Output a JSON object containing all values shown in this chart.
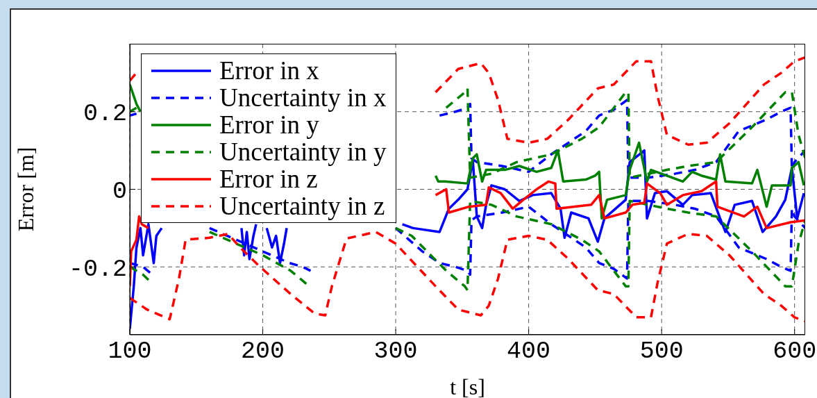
{
  "chart_data": {
    "type": "line",
    "xlabel": "t [s]",
    "ylabel": "Error [m]",
    "xlim": [
      100,
      608
    ],
    "ylim": [
      -0.375,
      0.375
    ],
    "xticks": [
      100,
      200,
      300,
      400,
      500,
      600
    ],
    "yticks": [
      -0.2,
      0,
      0.2
    ],
    "grid": true,
    "legend": "top left",
    "series": [
      {
        "name": "Error in x",
        "color": "#0000ff",
        "line_style": "solid",
        "x": [
          100,
          103,
          105,
          108,
          110,
          114,
          118,
          120,
          124,
          150,
          184,
          186,
          188,
          190,
          193,
          195,
          199,
          203,
          207,
          210,
          213,
          216,
          218,
          260,
          305,
          313,
          333,
          340,
          347,
          354,
          358,
          361,
          365,
          368,
          372,
          382,
          393,
          403,
          417,
          424,
          427,
          432,
          445,
          452,
          457,
          473,
          476,
          487,
          489,
          495,
          504,
          516,
          523,
          537,
          544,
          548,
          555,
          568,
          576,
          586,
          593,
          598,
          602,
          607
        ],
        "values": [
          -0.36,
          -0.25,
          -0.15,
          -0.1,
          -0.17,
          -0.09,
          -0.19,
          -0.12,
          -0.1,
          null,
          -0.1,
          -0.17,
          -0.11,
          -0.18,
          -0.12,
          -0.09,
          null,
          -0.1,
          -0.15,
          -0.12,
          -0.19,
          -0.14,
          -0.1,
          null,
          -0.09,
          -0.1,
          -0.11,
          -0.05,
          -0.027,
          0,
          0.075,
          -0.07,
          -0.1,
          -0.04,
          0.01,
          0,
          -0.03,
          -0.015,
          -0.01,
          -0.05,
          -0.125,
          -0.06,
          -0.075,
          -0.135,
          -0.075,
          -0.027,
          0.07,
          0.1,
          -0.075,
          -0.01,
          -0.005,
          -0.04,
          -0.015,
          -0.01,
          -0.075,
          -0.11,
          -0.04,
          -0.03,
          -0.11,
          -0.07,
          -0.027,
          0.055,
          -0.075,
          -0.01
        ]
      },
      {
        "name": "Uncertainty in x",
        "color": "#0000ff",
        "line_style": "dashed",
        "x": [
          100,
          105,
          117,
          118,
          140,
          160,
          180,
          200,
          220,
          230,
          236,
          237,
          260,
          280,
          300,
          320,
          333,
          345,
          354,
          356,
          357,
          361,
          380,
          400,
          417,
          443,
          453,
          464,
          474,
          475,
          480,
          490,
          510,
          525,
          541,
          558,
          579,
          590,
          597,
          598,
          600,
          608
        ],
        "values": [
          0.19,
          0.195,
          null,
          null,
          null,
          null,
          null,
          null,
          null,
          null,
          null,
          null,
          null,
          null,
          null,
          null,
          0.19,
          0.2,
          0.21,
          0.22,
          0.08,
          0.07,
          0.06,
          0.045,
          0.09,
          0.15,
          0.19,
          0.205,
          0.23,
          0.03,
          0.03,
          0.03,
          0.04,
          0.05,
          0.07,
          0.15,
          0.18,
          0.2,
          0.21,
          0.05,
          0.07,
          0.1
        ]
      },
      {
        "color": "#0000ff",
        "line_style": "dashed",
        "x": [
          100,
          110,
          117,
          118,
          140,
          160,
          180,
          200,
          220,
          230,
          236,
          237,
          260,
          280,
          300,
          320,
          333,
          345,
          354,
          356,
          357,
          361,
          380,
          400,
          417,
          443,
          453,
          464,
          474,
          475,
          480,
          490,
          510,
          525,
          541,
          558,
          579,
          590,
          597,
          598,
          600,
          608
        ],
        "values": [
          -0.19,
          -0.2,
          -0.22,
          null,
          null,
          -0.1,
          -0.13,
          -0.16,
          -0.19,
          -0.2,
          -0.21,
          null,
          null,
          null,
          -0.1,
          -0.16,
          -0.19,
          -0.2,
          -0.21,
          -0.22,
          -0.08,
          -0.07,
          -0.06,
          -0.045,
          -0.09,
          -0.15,
          -0.19,
          -0.205,
          -0.23,
          -0.03,
          -0.03,
          -0.03,
          -0.04,
          -0.05,
          -0.07,
          -0.15,
          -0.18,
          -0.2,
          -0.21,
          -0.05,
          -0.07,
          -0.1
        ]
      },
      {
        "name": "Error in y",
        "color": "#008000",
        "line_style": "solid",
        "x": [
          100,
          103,
          105,
          108,
          200,
          330,
          332,
          337,
          354,
          358,
          361,
          365,
          368,
          382,
          393,
          406,
          417,
          422,
          426,
          443,
          450,
          453,
          455,
          459,
          473,
          476,
          483,
          489,
          492,
          516,
          523,
          530,
          541,
          544,
          548,
          568,
          572,
          579,
          583,
          597,
          598,
          603,
          607
        ],
        "values": [
          0.27,
          0.24,
          0.22,
          0.2,
          null,
          0.035,
          0.02,
          0.02,
          0.015,
          0.08,
          0.09,
          0.02,
          0.05,
          0.05,
          0.06,
          0.045,
          0.055,
          0.1,
          0.02,
          0.025,
          0.035,
          0.045,
          -0.075,
          -0.027,
          -0.015,
          0.05,
          0.12,
          0.02,
          0.05,
          0.02,
          0.045,
          0.035,
          0.025,
          0.09,
          0.02,
          0.015,
          0.05,
          -0.045,
          0.01,
          0.01,
          0.055,
          0.07,
          0.01
        ]
      },
      {
        "name": "Uncertainty in y",
        "color": "#008000",
        "line_style": "dashed",
        "x": [
          100,
          105,
          116,
          118,
          140,
          160,
          180,
          200,
          221,
          235,
          236,
          237,
          260,
          280,
          300,
          312,
          338,
          352,
          354,
          356,
          372,
          391,
          417,
          440,
          453,
          473,
          475,
          476,
          490,
          504,
          520,
          541,
          568,
          593,
          598,
          603,
          608
        ],
        "values": [
          0.2,
          0.21,
          null,
          null,
          null,
          null,
          null,
          null,
          null,
          null,
          null,
          null,
          null,
          null,
          null,
          null,
          0.21,
          0.25,
          0.26,
          0.03,
          0.04,
          0.07,
          0.09,
          0.13,
          0.16,
          0.25,
          0.25,
          0.03,
          0.04,
          0.05,
          0.06,
          0.07,
          0.16,
          0.25,
          0.25,
          0.14,
          0.08
        ]
      },
      {
        "color": "#008000",
        "line_style": "dashed",
        "x": [
          100,
          110,
          116,
          118,
          140,
          160,
          180,
          200,
          221,
          235,
          236,
          237,
          260,
          280,
          300,
          312,
          338,
          352,
          354,
          356,
          372,
          391,
          417,
          440,
          453,
          473,
          475,
          476,
          490,
          504,
          520,
          541,
          568,
          593,
          598,
          603,
          608
        ],
        "values": [
          -0.2,
          -0.22,
          -0.24,
          null,
          null,
          -0.11,
          -0.14,
          -0.17,
          -0.21,
          -0.25,
          -0.25,
          null,
          null,
          null,
          -0.1,
          -0.12,
          -0.21,
          -0.25,
          -0.26,
          -0.03,
          -0.04,
          -0.07,
          -0.09,
          -0.13,
          -0.16,
          -0.25,
          -0.25,
          -0.03,
          -0.04,
          -0.05,
          -0.06,
          -0.07,
          -0.16,
          -0.25,
          -0.25,
          -0.14,
          -0.08
        ]
      },
      {
        "name": "Error in z",
        "color": "#ff0000",
        "line_style": "solid",
        "x": [
          100,
          101,
          105,
          107,
          109,
          114,
          200,
          330,
          338,
          340,
          355,
          368,
          370,
          379,
          388,
          396,
          406,
          415,
          420,
          421,
          447,
          453,
          457,
          473,
          478,
          487,
          489,
          499,
          504,
          516,
          530,
          541,
          542,
          562,
          572,
          579,
          597,
          608
        ],
        "values": [
          -0.25,
          -0.16,
          -0.13,
          -0.07,
          -0.09,
          -0.1,
          null,
          -0.015,
          0,
          -0.06,
          -0.045,
          -0.04,
          0.005,
          -0.01,
          -0.05,
          -0.027,
          0,
          0.02,
          0.015,
          -0.05,
          -0.04,
          -0.015,
          -0.075,
          -0.06,
          -0.04,
          -0.035,
          0.015,
          -0.01,
          -0.04,
          -0.015,
          -0.005,
          0.02,
          -0.045,
          -0.07,
          -0.045,
          -0.1,
          -0.085,
          -0.08
        ]
      },
      {
        "name": "Uncertainty in z",
        "color": "#ff0000",
        "line_style": "dashed",
        "x": [
          100,
          105,
          130,
          137,
          142,
          160,
          174,
          183,
          198,
          221,
          239,
          247,
          252,
          263,
          285,
          300,
          330,
          347,
          364,
          370,
          377,
          384,
          400,
          414,
          430,
          452,
          464,
          481,
          492,
          497,
          504,
          520,
          534,
          551,
          577,
          590,
          600,
          608
        ],
        "values": [
          0.28,
          0.3,
          null,
          null,
          null,
          null,
          null,
          null,
          null,
          null,
          null,
          null,
          null,
          null,
          null,
          null,
          0.25,
          0.31,
          0.325,
          0.3,
          0.23,
          0.13,
          0.12,
          0.13,
          0.18,
          0.26,
          0.27,
          0.33,
          0.33,
          0.24,
          0.14,
          0.115,
          0.12,
          0.17,
          0.27,
          0.3,
          0.33,
          0.34
        ]
      },
      {
        "color": "#ff0000",
        "line_style": "dashed",
        "x": [
          100,
          113,
          130,
          137,
          142,
          160,
          174,
          183,
          198,
          221,
          239,
          247,
          252,
          263,
          285,
          300,
          330,
          347,
          364,
          370,
          377,
          384,
          400,
          414,
          430,
          452,
          464,
          481,
          492,
          497,
          504,
          520,
          534,
          551,
          577,
          590,
          600,
          608
        ],
        "values": [
          -0.28,
          -0.31,
          -0.335,
          -0.23,
          -0.13,
          -0.125,
          -0.115,
          -0.15,
          -0.2,
          -0.27,
          -0.32,
          -0.325,
          -0.25,
          -0.127,
          -0.11,
          -0.14,
          -0.25,
          -0.31,
          -0.325,
          -0.3,
          -0.23,
          -0.13,
          -0.12,
          -0.13,
          -0.18,
          -0.26,
          -0.27,
          -0.33,
          -0.33,
          -0.24,
          -0.14,
          -0.115,
          -0.12,
          -0.17,
          -0.27,
          -0.3,
          -0.33,
          -0.34
        ]
      }
    ]
  }
}
